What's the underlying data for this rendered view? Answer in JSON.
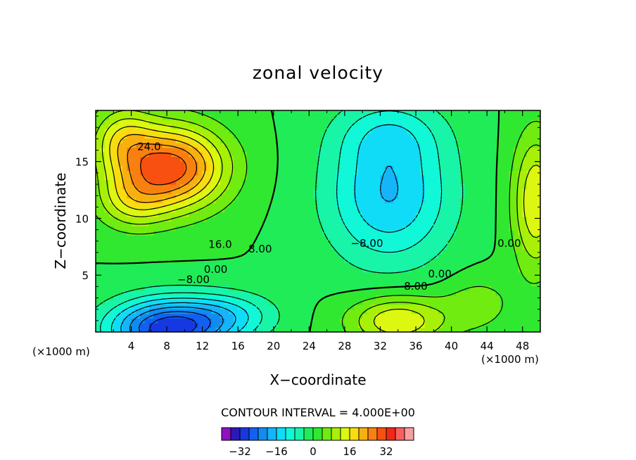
{
  "chart_data": {
    "type": "contour",
    "title": "zonal velocity",
    "xlabel": "X−coordinate",
    "ylabel": "Z−coordinate",
    "x_unit_label": "(×1000 m)",
    "y_unit_label": "(×1000 m)",
    "xlim": [
      0,
      50
    ],
    "ylim": [
      0,
      19.5
    ],
    "x_ticks": [
      4,
      8,
      12,
      16,
      20,
      24,
      28,
      32,
      36,
      40,
      44,
      48
    ],
    "y_ticks": [
      5,
      10,
      15
    ],
    "contour_interval_text": "CONTOUR INTERVAL = 4.000E+00",
    "contour_interval": 4,
    "negative_contours_dashed": true,
    "contour_labels": [
      {
        "text": "24.0",
        "x": 6.0,
        "y": 16.0
      },
      {
        "text": "16.0",
        "x": 14.0,
        "y": 7.4
      },
      {
        "text": "8.00",
        "x": 18.5,
        "y": 7.0
      },
      {
        "text": "0.00",
        "x": 13.5,
        "y": 5.2
      },
      {
        "text": "−8.00",
        "x": 11.0,
        "y": 4.3
      },
      {
        "text": "−8.00",
        "x": 30.5,
        "y": 7.5
      },
      {
        "text": "0.00",
        "x": 38.7,
        "y": 4.8
      },
      {
        "text": "8.00",
        "x": 36.0,
        "y": 3.7
      },
      {
        "text": "0.00",
        "x": 46.5,
        "y": 7.5
      }
    ],
    "features": [
      {
        "kind": "max",
        "x": 8.5,
        "y": 14.5,
        "value": 28
      },
      {
        "kind": "min",
        "x": 7.5,
        "y": 0.6,
        "value": -28
      },
      {
        "kind": "min",
        "x": 32.5,
        "y": 12.0,
        "value": -16
      },
      {
        "kind": "max",
        "x": 34.0,
        "y": 1.0,
        "value": 16
      },
      {
        "kind": "max",
        "x": 49.5,
        "y": 11.5,
        "value": 16
      }
    ],
    "colorbar": {
      "levels": [
        -36,
        -32,
        -28,
        -24,
        -20,
        -16,
        -12,
        -8,
        -4,
        0,
        4,
        8,
        12,
        16,
        20,
        24,
        28,
        32,
        36,
        40
      ],
      "tick_labels": [
        "−32",
        "−16",
        "0",
        "16",
        "32"
      ],
      "colors": [
        "#8f11c0",
        "#2a18b8",
        "#1638e0",
        "#1260f0",
        "#108cf0",
        "#16b4f8",
        "#10dcf8",
        "#10f8d8",
        "#18f4a8",
        "#20ec58",
        "#30e830",
        "#70ec10",
        "#a8f008",
        "#dcf810",
        "#f8dc10",
        "#f8b010",
        "#f88010",
        "#f85010",
        "#f02818",
        "#f86060",
        "#f8a0a0"
      ]
    }
  }
}
